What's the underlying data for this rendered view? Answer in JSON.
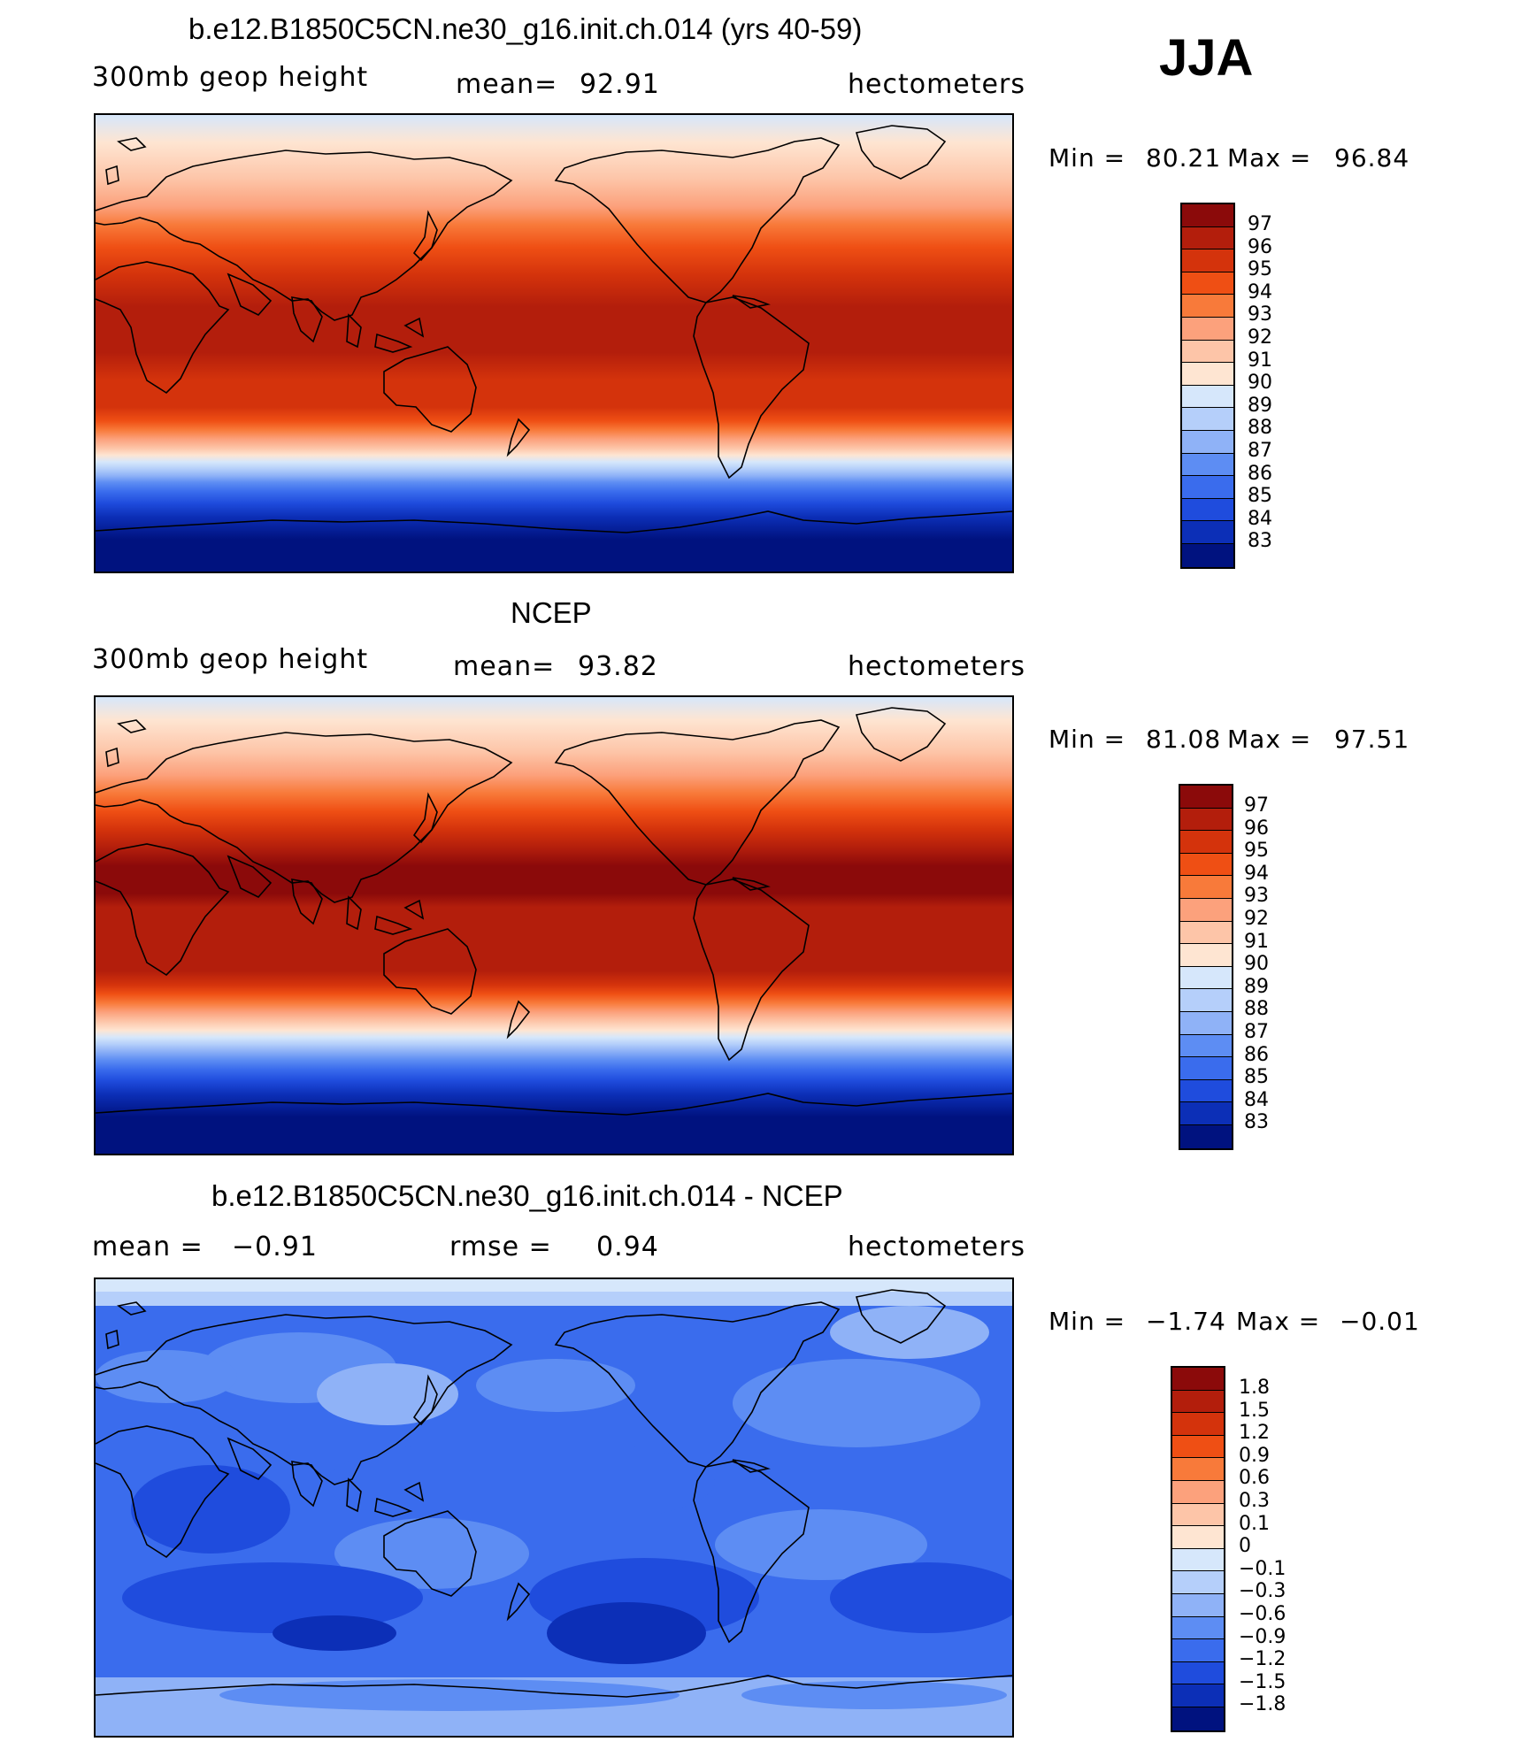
{
  "season": "JJA",
  "panels": [
    {
      "title": "b.e12.B1850C5CN.ne30_g16.init.ch.014 (yrs 40-59)",
      "left_label": "300mb  geop  height",
      "stat_label": "mean=",
      "stat_value": "92.91",
      "stat2_label": "",
      "stat2_value": "",
      "units": "hectometers",
      "min_label": "Min  =",
      "min_value": "80.21",
      "max_label": "Max  =",
      "max_value": "96.84",
      "colorbar_labels": [
        "97",
        "96",
        "95",
        "94",
        "93",
        "92",
        "91",
        "90",
        "89",
        "88",
        "87",
        "86",
        "85",
        "84",
        "83"
      ],
      "colorbar_colors": [
        "#8b0a0a",
        "#b31e0c",
        "#d4330c",
        "#ef4f14",
        "#f87a3a",
        "#fca17c",
        "#fdc5a8",
        "#fee5d2",
        "#d6e7fb",
        "#b5cffa",
        "#8fb2f7",
        "#5d8df3",
        "#3a6ced",
        "#1f4cdd",
        "#0c2fb7",
        "#00127f"
      ]
    },
    {
      "title": "NCEP",
      "left_label": "300mb  geop  height",
      "stat_label": "mean=",
      "stat_value": "93.82",
      "stat2_label": "",
      "stat2_value": "",
      "units": "hectometers",
      "min_label": "Min  =",
      "min_value": "81.08",
      "max_label": "Max  =",
      "max_value": "97.51",
      "colorbar_labels": [
        "97",
        "96",
        "95",
        "94",
        "93",
        "92",
        "91",
        "90",
        "89",
        "88",
        "87",
        "86",
        "85",
        "84",
        "83"
      ],
      "colorbar_colors": [
        "#8b0a0a",
        "#b31e0c",
        "#d4330c",
        "#ef4f14",
        "#f87a3a",
        "#fca17c",
        "#fdc5a8",
        "#fee5d2",
        "#d6e7fb",
        "#b5cffa",
        "#8fb2f7",
        "#5d8df3",
        "#3a6ced",
        "#1f4cdd",
        "#0c2fb7",
        "#00127f"
      ]
    },
    {
      "title": "b.e12.B1850C5CN.ne30_g16.init.ch.014 - NCEP",
      "left_label": "mean  =",
      "stat_label": "",
      "stat_value": "−0.91",
      "stat2_label": "rmse  =",
      "stat2_value": "0.94",
      "units": "hectometers",
      "min_label": "Min  =",
      "min_value": "−1.74",
      "max_label": "Max  =",
      "max_value": "−0.01",
      "colorbar_labels": [
        "1.8",
        "1.5",
        "1.2",
        "0.9",
        "0.6",
        "0.3",
        "0.1",
        "0",
        "−0.1",
        "−0.3",
        "−0.6",
        "−0.9",
        "−1.2",
        "−1.5",
        "−1.8"
      ],
      "colorbar_colors": [
        "#8b0a0a",
        "#b31e0c",
        "#d4330c",
        "#ef4f14",
        "#f87a3a",
        "#fca17c",
        "#fdc5a8",
        "#fee5d2",
        "#d6e7fb",
        "#b5cffa",
        "#8fb2f7",
        "#5d8df3",
        "#3a6ced",
        "#1f4cdd",
        "#0c2fb7",
        "#00127f"
      ]
    }
  ],
  "colors": {
    "field_mean_a": "#c12d0e",
    "field_mean_b": "#a8200c",
    "diff_mean": "#3d70ee"
  }
}
